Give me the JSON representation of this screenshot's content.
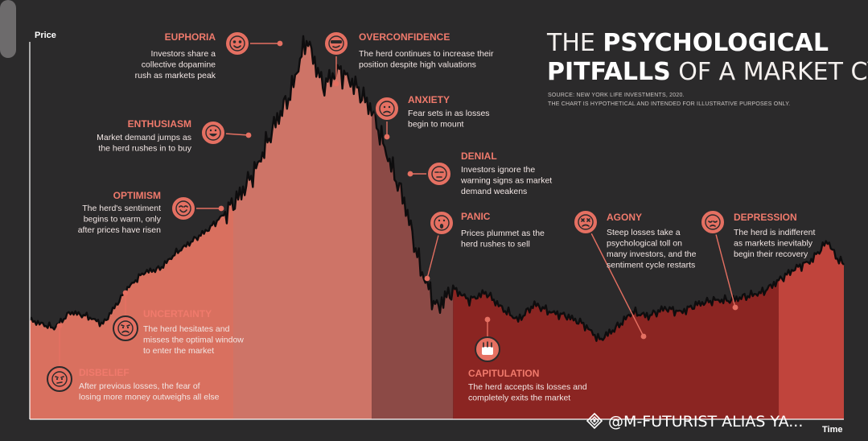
{
  "page": {
    "scroll_bar": true
  },
  "watermark": {
    "icon": "diamond-logo-icon",
    "text": "@M-FUTURIST  ALIAS YA..."
  },
  "colors": {
    "background": "#2b2a2b",
    "line": "#0e0d0e",
    "accent": "#f07a6c",
    "icon_fill": "#e57062",
    "zones": [
      "#d9705f",
      "#ce7467",
      "#8c4a46",
      "#8b2522",
      "#c0443c"
    ]
  },
  "chart_data": {
    "type": "area",
    "title": "THE PSYCHOLOGICAL PITFALLS OF A MARKET CYCLE",
    "title_parts": [
      "THE ",
      "PSYCHOLOGICAL",
      "PITFALLS",
      " OF A MARKET CYCLE"
    ],
    "source_lines": [
      "SOURCE: NEW YORK LIFE INVESTMENTS, 2020.",
      "THE CHART IS HYPOTHETICAL AND INTENDED FOR ILLUSTRATIVE PURPOSES ONLY."
    ],
    "xlabel": "Time",
    "ylabel": "Price",
    "xlim": [
      0,
      100
    ],
    "ylim": [
      0,
      100
    ],
    "grid": false,
    "legend": "none",
    "series": [
      {
        "x": [
          0,
          3,
          5,
          7,
          9,
          12,
          14,
          16,
          18,
          20,
          22,
          24,
          26,
          28,
          30,
          32,
          34,
          36,
          38,
          40,
          42,
          44,
          46,
          48,
          50,
          52,
          54,
          56,
          58,
          60,
          62,
          64,
          66,
          68,
          70,
          72,
          74,
          76,
          78,
          80,
          82,
          84,
          86,
          88,
          90,
          92,
          94,
          96,
          98,
          99,
          100
        ],
        "values": [
          25,
          23,
          27,
          26,
          24,
          33,
          37,
          38,
          42,
          45,
          48,
          52,
          57,
          64,
          74,
          82,
          96,
          84,
          88,
          84,
          78,
          66,
          55,
          38,
          28,
          33,
          30,
          32,
          28,
          25,
          29,
          27,
          26,
          24,
          20,
          23,
          27,
          26,
          28,
          27,
          29,
          30,
          30,
          31,
          32,
          35,
          38,
          40,
          45,
          41,
          39
        ]
      }
    ],
    "zones": [
      {
        "x_start": 0,
        "x_end": 25,
        "shade": "#d9705f"
      },
      {
        "x_start": 25,
        "x_end": 42,
        "shade": "#ce7467"
      },
      {
        "x_start": 42,
        "x_end": 52,
        "shade": "#8c4a46"
      },
      {
        "x_start": 52,
        "x_end": 92,
        "shade": "#8b2522"
      },
      {
        "x_start": 92,
        "x_end": 100,
        "shade": "#c0443c"
      }
    ],
    "annotations": [
      {
        "label": "EUPHORIA",
        "icon": "starry-eyes-face-icon",
        "lines": [
          "Investors share a",
          "collective dopamine",
          "rush as markets peak"
        ]
      },
      {
        "label": "OVERCONFIDENCE",
        "icon": "sunglasses-face-icon",
        "lines": [
          "The herd continues to increase their",
          "position despite high valuations"
        ]
      },
      {
        "label": "ANXIETY",
        "icon": "anxious-face-icon",
        "lines": [
          "Fear sets in as losses",
          "begin to mount"
        ]
      },
      {
        "label": "DENIAL",
        "icon": "unamused-face-icon",
        "lines": [
          "Investors ignore the",
          "warning signs as market",
          "demand weakens"
        ]
      },
      {
        "label": "PANIC",
        "icon": "screaming-face-icon",
        "lines": [
          "Prices plummet as the",
          "herd rushes to sell"
        ]
      },
      {
        "label": "ENTHUSIASM",
        "icon": "grinning-face-icon",
        "lines": [
          "Market demand jumps as",
          "the herd rushes in to buy"
        ]
      },
      {
        "label": "OPTIMISM",
        "icon": "smiling-face-icon",
        "lines": [
          "The herd's sentiment",
          "begins to warm, only",
          "after prices have risen"
        ]
      },
      {
        "label": "AGONY",
        "icon": "crying-face-icon",
        "lines": [
          "Steep losses take a",
          "psychological toll on",
          "many investors, and the",
          "sentiment cycle restarts"
        ]
      },
      {
        "label": "DEPRESSION",
        "icon": "sad-face-icon",
        "lines": [
          "The herd is indifferent",
          "as markets inevitably",
          "begin their recovery"
        ]
      },
      {
        "label": "UNCERTAINTY",
        "icon": "worried-face-icon",
        "lines": [
          "The herd hesitates and",
          "misses the optimal window",
          "to enter the market"
        ]
      },
      {
        "label": "DISBELIEF",
        "icon": "skeptical-face-icon",
        "lines": [
          "After previous losses, the fear of",
          "losing more money outweighs all else"
        ]
      },
      {
        "label": "CAPITULATION",
        "icon": "white-flag-icon",
        "lines": [
          "The herd accepts its losses and",
          "completely exits the market"
        ]
      }
    ]
  }
}
